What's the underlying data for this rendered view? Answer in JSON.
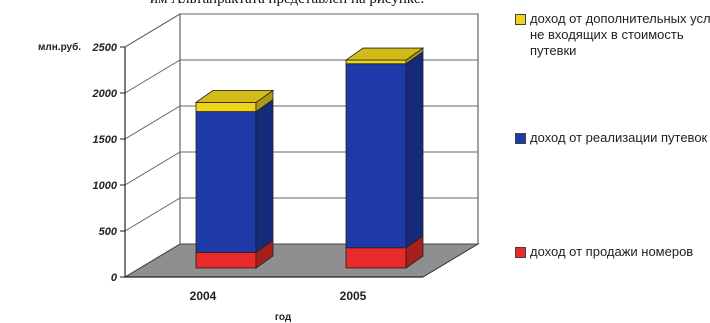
{
  "header": {
    "text": "им Альтапрактата представлен на рисунке."
  },
  "chart_data": {
    "type": "bar",
    "stacked": true,
    "three_d": true,
    "categories": [
      "2004",
      "2005"
    ],
    "series": [
      {
        "name": "доход от продажи номеров",
        "color": "#e82a2a",
        "values": [
          170,
          220
        ]
      },
      {
        "name": "доход от реализации путевок",
        "color": "#1d3aa8",
        "values": [
          1530,
          2000
        ]
      },
      {
        "name": "доход от дополнительных услуг, не входящих в стоимость путевки",
        "color": "#f0d41c",
        "values": [
          100,
          40
        ]
      }
    ],
    "ylabel": "млн.руб.",
    "xlabel": "год",
    "ylim": [
      0,
      2500
    ],
    "yticks": [
      "0",
      "500",
      "1000",
      "1500",
      "2000",
      "2500"
    ],
    "grid": true,
    "legend_position": "right"
  }
}
